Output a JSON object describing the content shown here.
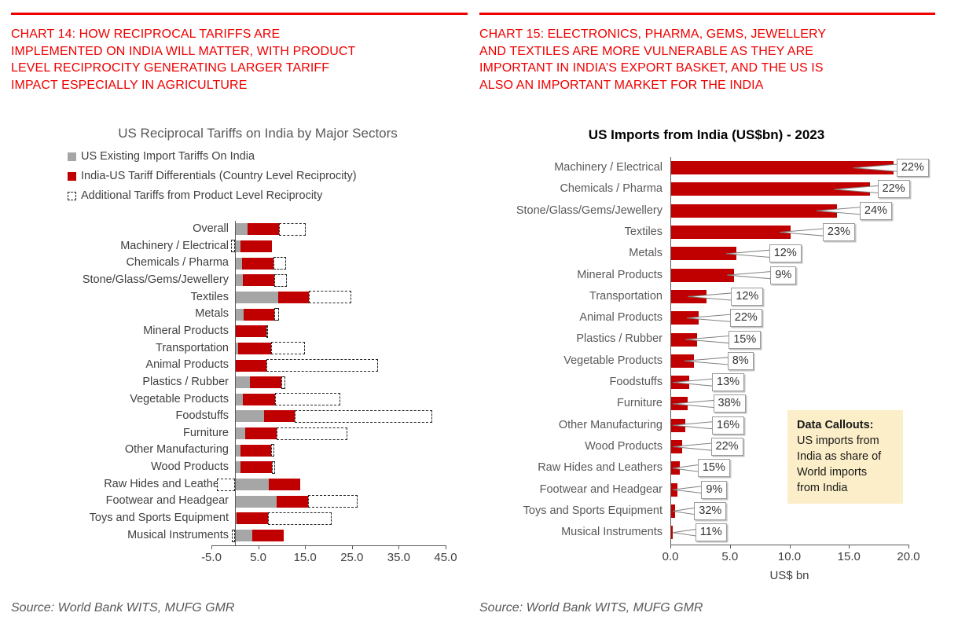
{
  "page": {
    "left_panel": {
      "heading": "CHART 14: HOW RECIPROCAL TARIFFS ARE\nIMPLEMENTED ON INDIA WILL MATTER, WITH PRODUCT\nLEVEL RECIPROCITY GENERATING LARGER TARIFF\nIMPACT ESPECIALLY IN AGRICULTURE",
      "source": "Source: World Bank WITS, MUFG GMR"
    },
    "right_panel": {
      "heading": "CHART 15: ELECTRONICS, PHARMA, GEMS, JEWELLERY\nAND TEXTILES ARE MORE VULNERABLE AS THEY ARE\nIMPORTANT IN INDIA’S EXPORT BASKET, AND THE US IS\nALSO AN IMPORTANT MARKET FOR THE INDIA",
      "source": "Source: World Bank WITS, MUFG GMR",
      "note": {
        "title": "Data Callouts:",
        "body": "US imports from\nIndia as share of\nWorld imports\nfrom India"
      }
    }
  },
  "colors": {
    "heading_red": "#ef0000",
    "bar_dark_red": "#c00000",
    "bar_gray": "#a6a6a6",
    "axis_gray": "#595959",
    "label_gray": "#404040",
    "note_bg": "#fbeec8",
    "callout_border": "#9a9a9a"
  },
  "chart_data": [
    {
      "id": "us-reciprocal-tariffs-by-sector",
      "type": "bar",
      "orientation": "horizontal",
      "stacked": true,
      "title": "US Reciprocal Tariffs on India by Major Sectors",
      "xlabel": "",
      "ylabel": "",
      "xlim": [
        -5,
        45
      ],
      "xticks": [
        -5,
        5,
        15,
        25,
        35,
        45
      ],
      "xtick_labels": [
        "-5.0",
        "5.0",
        "15.0",
        "25.0",
        "35.0",
        "45.0"
      ],
      "grid": false,
      "legend_position": "top-left",
      "categories": [
        "Overall",
        "Machinery / Electrical",
        "Chemicals / Pharma",
        "Stone/Glass/Gems/Jewellery",
        "Textiles",
        "Metals",
        "Mineral Products",
        "Transportation",
        "Animal Products",
        "Plastics / Rubber",
        "Vegetable Products",
        "Foodstuffs",
        "Furniture",
        "Other Manufacturing",
        "Wood Products",
        "Raw Hides and Leathers",
        "Footwear and Headgear",
        "Toys and Sports Equipment",
        "Musical Instruments"
      ],
      "series": [
        {
          "name": "US Existing Import Tariffs On India",
          "color": "#a6a6a6",
          "style": "solid",
          "values": [
            2.7,
            1.2,
            1.4,
            1.7,
            9.2,
            1.8,
            0.2,
            0.7,
            0.2,
            3.2,
            1.7,
            6.1,
            2.1,
            1.2,
            1.2,
            7.1,
            8.8,
            0.3,
            3.6
          ]
        },
        {
          "name": "India-US Tariff Differentials (Country Level Reciprocity)",
          "color": "#c00000",
          "style": "solid",
          "values": [
            6.7,
            6.6,
            6.8,
            6.8,
            6.6,
            6.6,
            6.6,
            7.0,
            6.6,
            6.7,
            6.9,
            6.7,
            6.9,
            6.6,
            6.7,
            6.7,
            6.9,
            6.7,
            6.8
          ]
        },
        {
          "name": "Additional Tariffs from Product Level Reciprocity",
          "color": "#ffffff",
          "style": "dashed-outline",
          "values": [
            5.8,
            -0.8,
            2.7,
            2.6,
            9.0,
            1.0,
            0.3,
            7.2,
            23.8,
            0.8,
            14.0,
            29.4,
            15.1,
            0.6,
            0.7,
            -3.8,
            10.5,
            13.6,
            -0.6
          ]
        }
      ]
    },
    {
      "id": "us-imports-from-india-2023",
      "type": "bar",
      "orientation": "horizontal",
      "stacked": false,
      "title": "US Imports from India (US$bn) - 2023",
      "xlabel": "US$ bn",
      "ylabel": "",
      "xlim": [
        0,
        20
      ],
      "xticks": [
        0,
        5,
        10,
        15,
        20
      ],
      "xtick_labels": [
        "0.0",
        "5.0",
        "10.0",
        "15.0",
        "20.0"
      ],
      "grid": false,
      "bar_color": "#c00000",
      "categories": [
        "Machinery / Electrical",
        "Chemicals / Pharma",
        "Stone/Glass/Gems/Jewellery",
        "Textiles",
        "Metals",
        "Mineral Products",
        "Transportation",
        "Animal Products",
        "Plastics / Rubber",
        "Vegetable Products",
        "Foodstuffs",
        "Furniture",
        "Other Manufacturing",
        "Wood Products",
        "Raw Hides and Leathers",
        "Footwear and Headgear",
        "Toys and Sports Equipment",
        "Musical Instruments"
      ],
      "values": [
        18.7,
        16.7,
        13.9,
        10.0,
        5.5,
        5.3,
        3.0,
        2.3,
        2.2,
        1.9,
        1.5,
        1.4,
        1.2,
        0.9,
        0.7,
        0.55,
        0.35,
        0.15
      ],
      "data_labels": [
        "22%",
        "22%",
        "24%",
        "23%",
        "12%",
        "9%",
        "12%",
        "22%",
        "15%",
        "8%",
        "13%",
        "38%",
        "16%",
        "22%",
        "15%",
        "9%",
        "32%",
        "11%"
      ],
      "data_label_x": [
        19.0,
        17.4,
        15.9,
        12.8,
        8.3,
        8.4,
        5.1,
        5.0,
        4.9,
        4.8,
        3.5,
        3.6,
        3.5,
        3.4,
        2.3,
        2.6,
        2.0,
        2.1
      ],
      "data_label_note": "US imports from India as share of World imports from India"
    }
  ]
}
